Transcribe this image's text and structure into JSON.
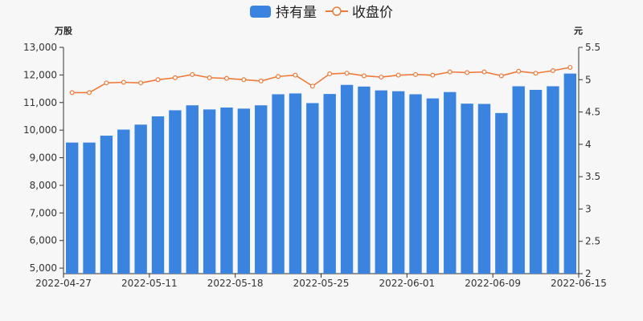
{
  "chart_data": {
    "type": "bar+line",
    "legend": {
      "position": "top-center",
      "items": [
        {
          "label": "持有量",
          "color": "#3a84e0",
          "type": "bar"
        },
        {
          "label": "收盘价",
          "color": "#ee7a3a",
          "type": "line"
        }
      ]
    },
    "left_axis": {
      "unit": "万股",
      "min": 4800,
      "max": 13000,
      "ticks": [
        5000,
        6000,
        7000,
        8000,
        9000,
        10000,
        11000,
        12000,
        13000
      ],
      "tick_labels": [
        "5,000",
        "6,000",
        "7,000",
        "8,000",
        "9,000",
        "10,000",
        "11,000",
        "12,000",
        "13,000"
      ]
    },
    "right_axis": {
      "unit": "元",
      "min": 2,
      "max": 5.5,
      "ticks": [
        2,
        2.5,
        3,
        3.5,
        4,
        4.5,
        5,
        5.5
      ],
      "tick_labels": [
        "2",
        "2.5",
        "3",
        "3.5",
        "4",
        "4.5",
        "5",
        "5.5"
      ]
    },
    "x_tick_labels": [
      {
        "label": "2022-04-27",
        "index": 0
      },
      {
        "label": "2022-05-11",
        "index": 5
      },
      {
        "label": "2022-05-18",
        "index": 10
      },
      {
        "label": "2022-05-25",
        "index": 15
      },
      {
        "label": "2022-06-01",
        "index": 20
      },
      {
        "label": "2022-06-09",
        "index": 25
      },
      {
        "label": "2022-06-15",
        "index": 29
      }
    ],
    "series": [
      {
        "name": "持有量",
        "type": "bar",
        "axis": "left",
        "color": "#3a84e0",
        "values": [
          9550,
          9550,
          9800,
          10020,
          10200,
          10500,
          10720,
          10900,
          10750,
          10820,
          10780,
          10900,
          11300,
          11330,
          10980,
          11310,
          11640,
          11580,
          11440,
          11410,
          11300,
          11150,
          11380,
          10960,
          10950,
          10620,
          11590,
          11460,
          11590,
          12050
        ]
      },
      {
        "name": "收盘价",
        "type": "line",
        "axis": "right",
        "color": "#ee7a3a",
        "values": [
          4.8,
          4.8,
          4.95,
          4.96,
          4.95,
          5.0,
          5.03,
          5.08,
          5.03,
          5.02,
          5.0,
          4.98,
          5.05,
          5.07,
          4.9,
          5.09,
          5.1,
          5.06,
          5.04,
          5.07,
          5.08,
          5.07,
          5.12,
          5.11,
          5.12,
          5.06,
          5.13,
          5.1,
          5.14,
          5.19
        ]
      }
    ]
  }
}
